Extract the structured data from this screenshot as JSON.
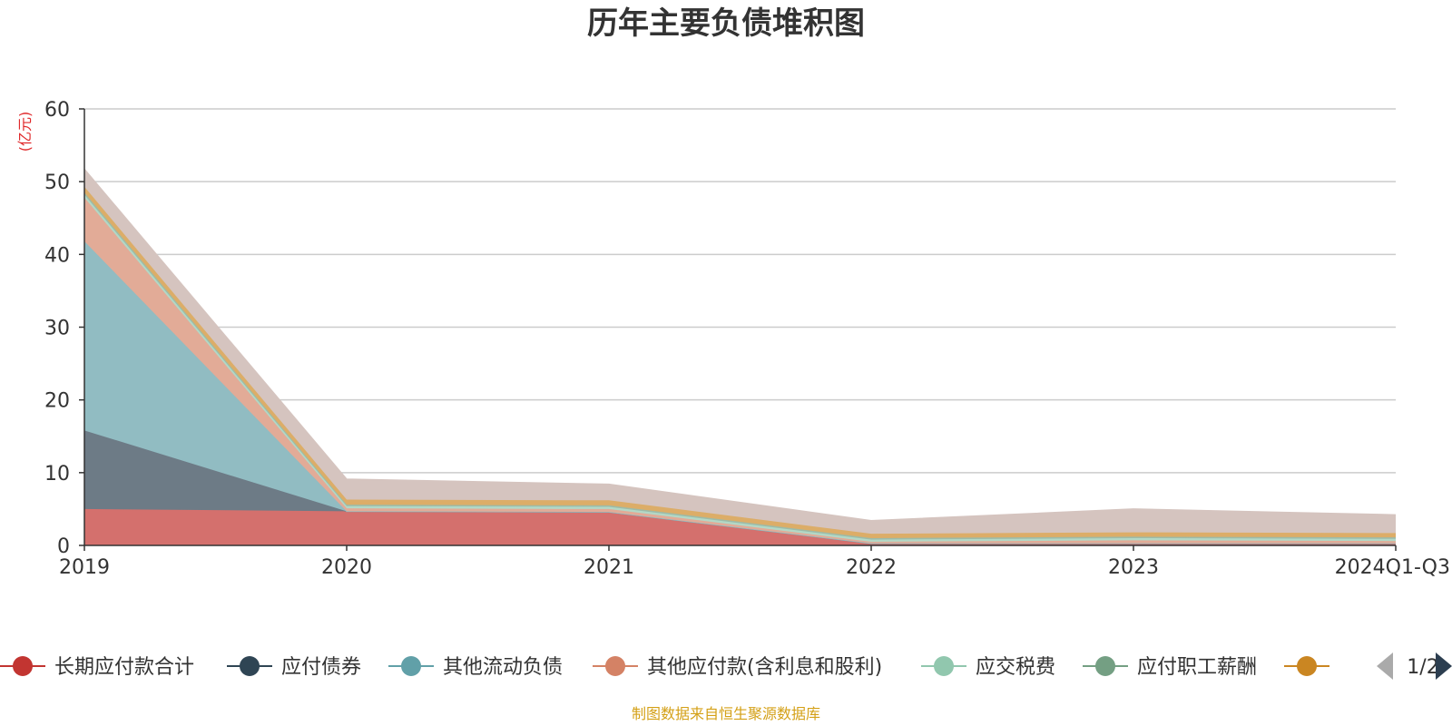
{
  "colors": {
    "title": "#333333",
    "axis": "#333333",
    "grid": "#cccccc",
    "unit": "#e0292b",
    "source": "#d4a017",
    "pager_active": "#2c3e50",
    "pager_inactive": "#aaaaaa"
  },
  "chart_data": {
    "type": "area",
    "stacked": true,
    "title": "历年主要负债堆积图",
    "y_unit": "(亿元)",
    "categories": [
      "2019",
      "2020",
      "2021",
      "2022",
      "2023",
      "2024Q1-Q3"
    ],
    "ylim": [
      0,
      60
    ],
    "yticks": [
      0,
      10,
      20,
      30,
      40,
      50,
      60
    ],
    "grid": true,
    "legend_position": "bottom",
    "series": [
      {
        "name": "长期应付款合计",
        "color": "#c23531",
        "fill": "#d4706d",
        "values": [
          5.0,
          4.7,
          4.6,
          0.3,
          0.3,
          0.3
        ]
      },
      {
        "name": "应付债券",
        "color": "#2f4554",
        "fill": "#6d7b86",
        "values": [
          10.8,
          0.0,
          0.0,
          0.0,
          0.0,
          0.0
        ]
      },
      {
        "name": "其他流动负债",
        "color": "#61a0a8",
        "fill": "#91bcc2",
        "values": [
          26.0,
          0.0,
          0.0,
          0.0,
          0.0,
          0.0
        ]
      },
      {
        "name": "其他应付款(含利息和股利)",
        "color": "#d48265",
        "fill": "#e2ab97",
        "values": [
          6.0,
          0.4,
          0.4,
          0.2,
          0.4,
          0.3
        ]
      },
      {
        "name": "应交税费",
        "color": "#91c7ae",
        "fill": "#b2d8c6",
        "values": [
          0.4,
          0.3,
          0.3,
          0.3,
          0.3,
          0.3
        ]
      },
      {
        "name": "应付职工薪酬",
        "color": "#749f83",
        "fill": "#9dbba8",
        "values": [
          0.3,
          0.2,
          0.2,
          0.2,
          0.2,
          0.2
        ]
      },
      {
        "name": "",
        "color": "#ca8622",
        "fill": "#dcad68",
        "values": [
          0.8,
          0.7,
          0.7,
          0.6,
          0.6,
          0.6
        ]
      },
      {
        "name": "",
        "color": "#bda29a",
        "fill": "#d5c4bf",
        "values": [
          2.4,
          2.8,
          2.2,
          1.8,
          3.2,
          2.5
        ]
      }
    ]
  },
  "legend": {
    "page": "1/2"
  },
  "source": "制图数据来自恒生聚源数据库"
}
